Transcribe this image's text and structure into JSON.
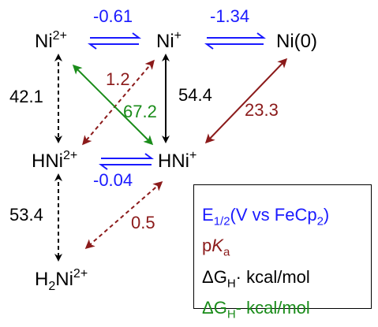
{
  "species": {
    "ni2": {
      "base": "Ni",
      "sup": "2+"
    },
    "ni1": {
      "base": "Ni",
      "sup": "+"
    },
    "ni0": {
      "base": "Ni(0)"
    },
    "hni2": {
      "base": "HNi",
      "sup": "2+"
    },
    "hni1": {
      "base": "HNi",
      "sup": "+"
    },
    "h2ni2": {
      "pre": "H",
      "presub": "2",
      "base": "Ni",
      "sup": "2+"
    }
  },
  "values": {
    "e_ni2_ni1": "-0.61",
    "e_ni1_ni0": "-1.34",
    "e_hni2_hni1": "-0.04",
    "pka_ni1_hni2": "1.2",
    "pka_ni0_hni1": "23.3",
    "pka_hni1_h2ni2": "0.5",
    "dgh_ni2_hni2": "42.1",
    "dgh_ni1_hni1": "54.4",
    "dgh_hni2_h2ni2": "53.4",
    "dghminus_ni2_hni1": "67.2"
  },
  "legend": {
    "e_main": "E",
    "e_sub": "1/2",
    "e_rest": "(V vs FeCp",
    "e_sub2": "2",
    "e_close": ")",
    "pka_p": "p",
    "pka_k": "K",
    "pka_sub": "a",
    "dgh_sym": "ΔG",
    "dgh_sub": "H",
    "dgh_dot": "·",
    "dgh_unit": " kcal/mol",
    "dghm_sym": "ΔG",
    "dghm_sub": "H",
    "dghm_dash": "-",
    "dghm_unit": " kcal/mol"
  },
  "colors": {
    "redox": "#1a1aff",
    "pka": "#8b1a1a",
    "dgh": "#000000",
    "dghminus": "#1a8c1a"
  }
}
